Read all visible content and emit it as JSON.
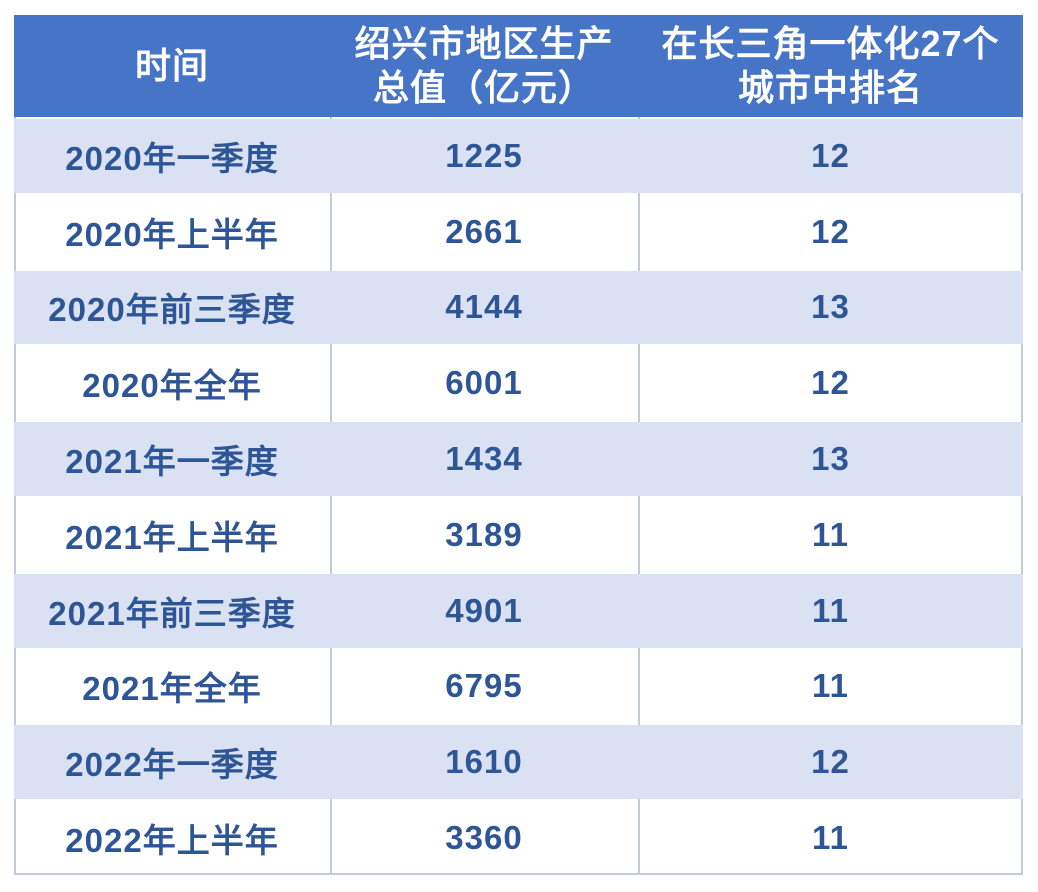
{
  "table": {
    "header": {
      "time": "时间",
      "gdp_line1": "绍兴市地区生产",
      "gdp_line2": "总值（亿元）",
      "rank_line1": "在长三角一体化27个",
      "rank_line2": "城市中排名"
    },
    "rows": [
      {
        "time": "2020年一季度",
        "gdp": "1225",
        "rank": "12"
      },
      {
        "time": "2020年上半年",
        "gdp": "2661",
        "rank": "12"
      },
      {
        "time": "2020年前三季度",
        "gdp": "4144",
        "rank": "13"
      },
      {
        "time": "2020年全年",
        "gdp": "6001",
        "rank": "12"
      },
      {
        "time": "2021年一季度",
        "gdp": "1434",
        "rank": "13"
      },
      {
        "time": "2021年上半年",
        "gdp": "3189",
        "rank": "11"
      },
      {
        "time": "2021年前三季度",
        "gdp": "4901",
        "rank": "11"
      },
      {
        "time": "2021年全年",
        "gdp": "6795",
        "rank": "11"
      },
      {
        "time": "2022年一季度",
        "gdp": "1610",
        "rank": "12"
      },
      {
        "time": "2022年上半年",
        "gdp": "3360",
        "rank": "11"
      }
    ],
    "colors": {
      "header_bg": "#4674C6",
      "band_bg": "#D9E1F2",
      "grid_line": "#C2CBDA",
      "text": "#2E5696",
      "header_text": "#FFFFFF"
    }
  },
  "chart_data": {
    "type": "table",
    "columns": [
      "时间",
      "绍兴市地区生产总值（亿元）",
      "在长三角一体化27个城市中排名"
    ],
    "rows": [
      [
        "2020年一季度",
        1225,
        12
      ],
      [
        "2020年上半年",
        2661,
        12
      ],
      [
        "2020年前三季度",
        4144,
        13
      ],
      [
        "2020年全年",
        6001,
        12
      ],
      [
        "2021年一季度",
        1434,
        13
      ],
      [
        "2021年上半年",
        3189,
        11
      ],
      [
        "2021年前三季度",
        4901,
        11
      ],
      [
        "2021年全年",
        6795,
        11
      ],
      [
        "2022年一季度",
        1610,
        12
      ],
      [
        "2022年上半年",
        3360,
        11
      ]
    ],
    "layout_hints": {
      "banded_rows": true,
      "band_start": "first_data_row",
      "gridlines_visible_on_white_rows_only": true
    }
  }
}
